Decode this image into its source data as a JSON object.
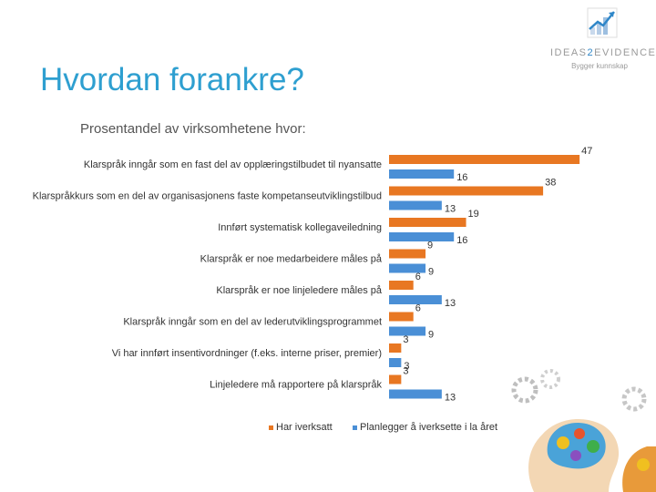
{
  "logo": {
    "name_prefix": "IDEAS",
    "name_accent": "2",
    "name_suffix": "EVIDENCE",
    "tagline": "Bygger kunnskap"
  },
  "colors": {
    "title": "#2e9fd0",
    "series_1": "#e87722",
    "series_2": "#4a8fd6",
    "logo_accent": "#2e86c8"
  },
  "page": {
    "title": "Hvordan forankre?"
  },
  "chart_data": {
    "type": "bar",
    "orientation": "horizontal",
    "title": "Prosentandel av virksomhetene hvor:",
    "categories": [
      "Klarspråk inngår som en fast del av opplæringstilbudet til nyansatte",
      "Klarspråkkurs som en del av organisasjonens faste kompetanseutviklingstilbud",
      "Innført systematisk kollegaveiledning",
      "Klarspråk er noe medarbeidere måles på",
      "Klarspråk er noe linjeledere måles på",
      "Klarspråk inngår som en del av lederutviklingsprogrammet",
      "Vi har innført insentivordninger (f.eks. interne priser, premier)",
      "Linjeledere må rapportere på klarspråk"
    ],
    "series": [
      {
        "name": "Har iverksatt",
        "color": "#e87722",
        "values": [
          47,
          38,
          19,
          9,
          6,
          6,
          3,
          3
        ]
      },
      {
        "name": "Planlegger å iverksette i la året",
        "color": "#4a8fd6",
        "values": [
          16,
          13,
          16,
          9,
          13,
          9,
          3,
          13
        ]
      }
    ],
    "xlim": [
      0,
      50
    ],
    "grid": false,
    "legend": "bottom"
  },
  "decor": {
    "image": "brain-gears-illustration"
  }
}
